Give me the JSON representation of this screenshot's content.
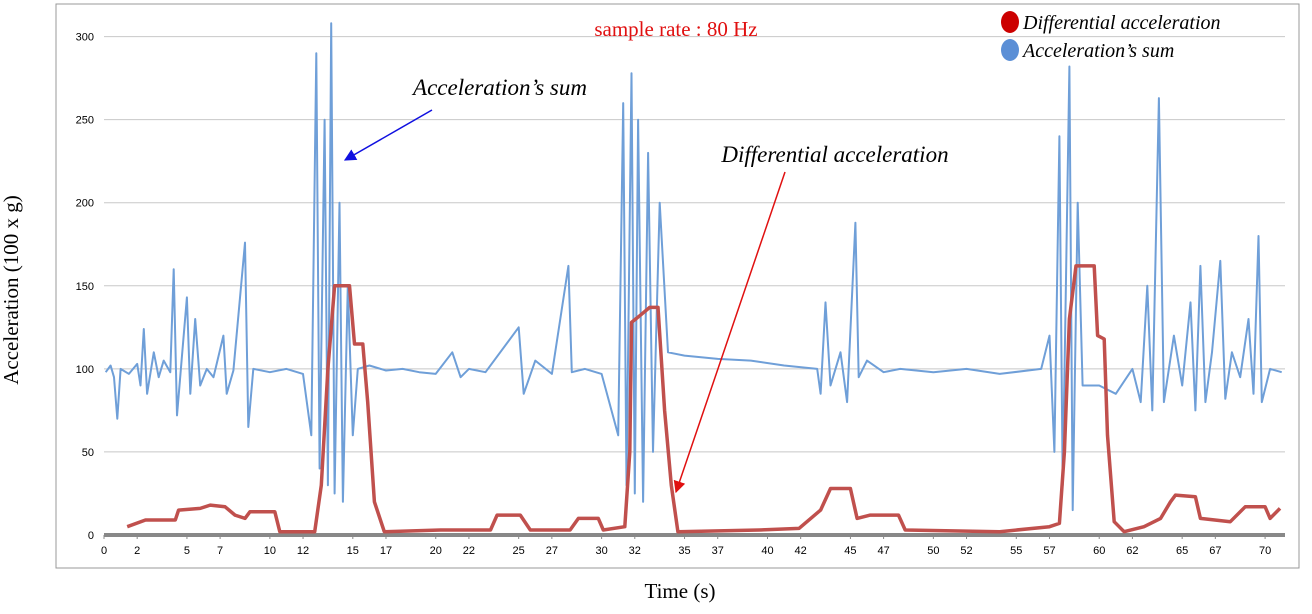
{
  "chart_data": {
    "type": "line",
    "ylabel": "Acceleration (100 x g)",
    "xlabel": "Time (s)",
    "annotations": [
      "sample rate : 80 Hz",
      "Acceleration’s sum",
      "Differential acceleration"
    ],
    "xlim": [
      0,
      71.2
    ],
    "ylim": [
      0,
      310
    ],
    "xticks": [
      0,
      2,
      5,
      7,
      10,
      12,
      15,
      17,
      20,
      22,
      25,
      27,
      30,
      32,
      35,
      37,
      40,
      42,
      45,
      47,
      50,
      52,
      55,
      57,
      60,
      62,
      65,
      67,
      70
    ],
    "yticks": [
      0,
      50,
      100,
      150,
      200,
      250,
      300
    ],
    "grid": true,
    "legend": "top-right",
    "series": [
      {
        "name": "Differential acceleration",
        "color": "#c0504d",
        "x": [
          1.4,
          2.5,
          4.3,
          4.5,
          5.8,
          6.4,
          7.3,
          7.9,
          8.5,
          8.8,
          10.3,
          10.6,
          12.7,
          13.1,
          13.5,
          13.9,
          14.8,
          15.1,
          15.6,
          15.9,
          16.3,
          16.9,
          20.3,
          23.3,
          23.7,
          25.1,
          25.7,
          28.1,
          28.6,
          29.8,
          30.1,
          31.4,
          31.7,
          31.8,
          32.3,
          32.9,
          33.4,
          33.8,
          34.2,
          34.6,
          39.5,
          41.9,
          43.2,
          43.8,
          45,
          45.4,
          46.2,
          47.9,
          48.3,
          54,
          57,
          57.6,
          57.9,
          58.2,
          58.6,
          59.7,
          59.9,
          60.3,
          60.5,
          60.9,
          61.5,
          62.7,
          63.7,
          64.3,
          64.6,
          65.8,
          66.1,
          67.9,
          68.8,
          70,
          70.3,
          70.9
        ],
        "values": [
          5,
          9,
          9,
          15,
          16,
          18,
          17,
          12,
          10,
          14,
          14,
          2,
          2,
          30,
          100,
          150,
          150,
          115,
          115,
          80,
          20,
          2,
          3,
          3,
          12,
          12,
          3,
          3,
          10,
          10,
          3,
          5,
          50,
          128,
          132,
          137,
          137,
          75,
          30,
          2,
          3,
          4,
          15,
          28,
          28,
          10,
          12,
          12,
          3,
          2,
          5,
          7,
          50,
          130,
          162,
          162,
          120,
          118,
          60,
          8,
          2,
          5,
          10,
          20,
          24,
          23,
          10,
          8,
          17,
          17,
          10,
          16
        ]
      },
      {
        "name": "Acceleration’s sum",
        "color": "#6f9fd8",
        "x": [
          0.1,
          0.4,
          0.6,
          0.8,
          1,
          1.5,
          2,
          2.2,
          2.4,
          2.6,
          3,
          3.3,
          3.6,
          4,
          4.2,
          4.4,
          4.7,
          5,
          5.2,
          5.5,
          5.8,
          6.2,
          6.6,
          7.2,
          7.4,
          7.8,
          8.5,
          8.7,
          9,
          10,
          11,
          12,
          12.5,
          12.8,
          13,
          13.3,
          13.5,
          13.7,
          13.9,
          14.2,
          14.4,
          14.7,
          15,
          15.3,
          16,
          17,
          18,
          19,
          20,
          21,
          21.5,
          22,
          23,
          25,
          25.3,
          26,
          27,
          28,
          28.2,
          29,
          30,
          31,
          31.3,
          31.5,
          31.8,
          32,
          32.2,
          32.5,
          32.8,
          33.1,
          33.5,
          34,
          35,
          37,
          39,
          41,
          43,
          43.2,
          43.5,
          43.8,
          44.4,
          44.8,
          45.3,
          45.5,
          46,
          47,
          48,
          50,
          52,
          54,
          56.5,
          57,
          57.3,
          57.6,
          57.8,
          58.2,
          58.4,
          58.7,
          59,
          60,
          61,
          62,
          62.5,
          62.9,
          63.2,
          63.6,
          63.9,
          64.5,
          65,
          65.5,
          65.8,
          66.1,
          66.4,
          66.8,
          67.3,
          67.6,
          68,
          68.5,
          69,
          69.3,
          69.6,
          69.8,
          70.3,
          71
        ],
        "values": [
          98,
          102,
          95,
          70,
          100,
          97,
          103,
          90,
          124,
          85,
          110,
          95,
          105,
          98,
          160,
          72,
          108,
          143,
          85,
          130,
          90,
          100,
          95,
          120,
          85,
          99,
          176,
          65,
          100,
          98,
          100,
          97,
          60,
          290,
          40,
          250,
          30,
          308,
          25,
          200,
          20,
          150,
          60,
          100,
          102,
          99,
          100,
          98,
          97,
          110,
          95,
          100,
          98,
          125,
          85,
          105,
          97,
          162,
          98,
          100,
          97,
          60,
          260,
          30,
          278,
          25,
          250,
          20,
          230,
          50,
          200,
          110,
          108,
          106,
          105,
          102,
          100,
          85,
          140,
          90,
          110,
          80,
          188,
          95,
          105,
          98,
          100,
          98,
          100,
          97,
          100,
          120,
          50,
          240,
          30,
          282,
          15,
          200,
          90,
          90,
          85,
          100,
          80,
          150,
          75,
          263,
          80,
          120,
          90,
          140,
          75,
          162,
          80,
          110,
          165,
          82,
          110,
          95,
          130,
          85,
          180,
          80,
          100,
          98
        ]
      }
    ]
  }
}
